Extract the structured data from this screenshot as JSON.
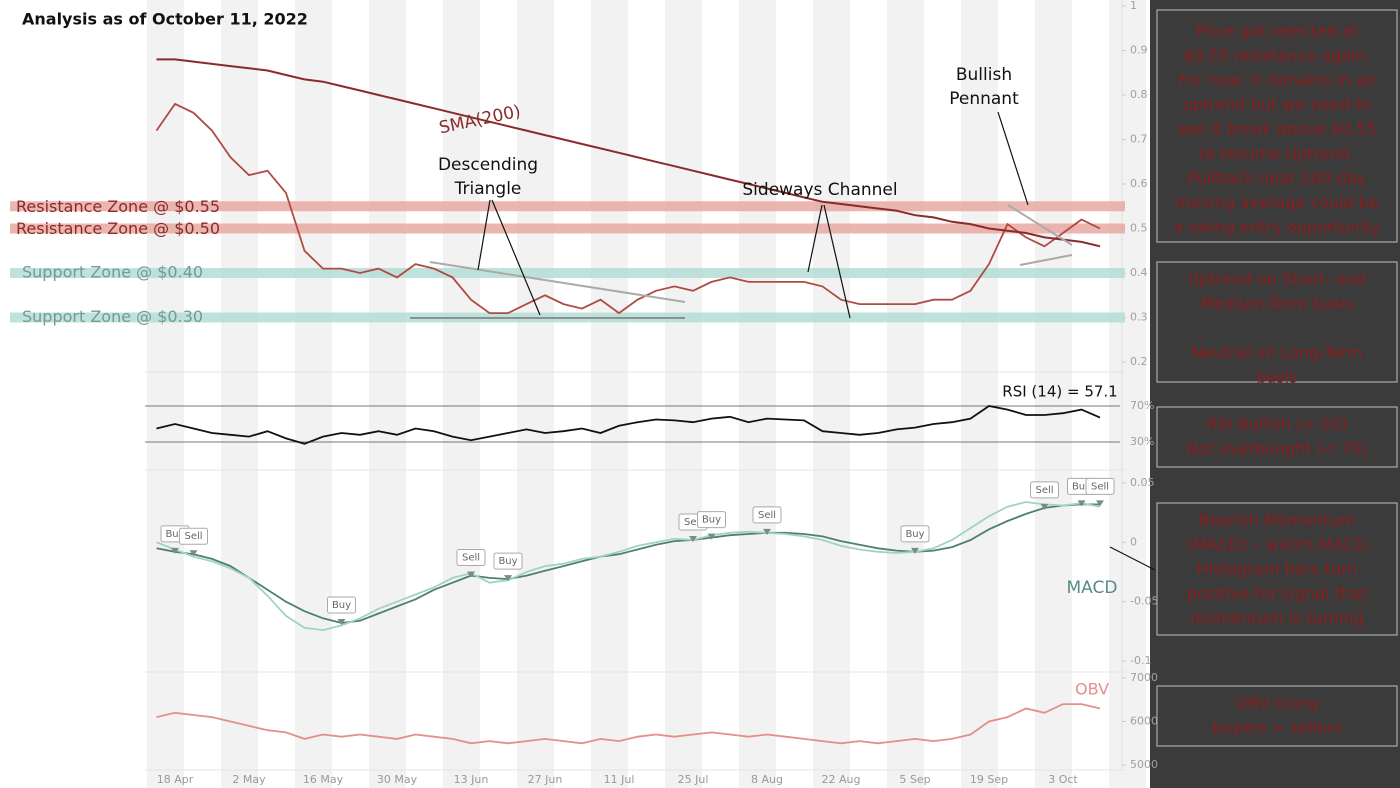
{
  "title": "Analysis as of October 11, 2022",
  "chart_data": [
    {
      "type": "line",
      "ylim": [
        0.2,
        1
      ],
      "yticks": [
        1,
        0.9,
        0.8,
        0.7,
        0.6,
        0.5,
        0.4,
        0.3,
        0.2
      ],
      "series": [
        {
          "color": "#b04a44",
          "values": [
            0.72,
            0.78,
            0.76,
            0.72,
            0.66,
            0.62,
            0.63,
            0.58,
            0.45,
            0.41,
            0.41,
            0.4,
            0.41,
            0.39,
            0.42,
            0.41,
            0.39,
            0.34,
            0.31,
            0.31,
            0.33,
            0.35,
            0.33,
            0.32,
            0.34,
            0.31,
            0.34,
            0.36,
            0.37,
            0.36,
            0.38,
            0.39,
            0.38,
            0.38,
            0.38,
            0.38,
            0.37,
            0.34,
            0.33,
            0.33,
            0.33,
            0.33,
            0.34,
            0.34,
            0.36,
            0.42,
            0.51,
            0.48,
            0.46,
            0.49,
            0.52,
            0.5
          ]
        },
        {
          "color": "#8b2a2a",
          "values": [
            0.88,
            0.88,
            0.875,
            0.87,
            0.865,
            0.86,
            0.855,
            0.845,
            0.835,
            0.83,
            0.82,
            0.81,
            0.8,
            0.79,
            0.78,
            0.77,
            0.76,
            0.75,
            0.74,
            0.73,
            0.72,
            0.71,
            0.7,
            0.69,
            0.68,
            0.67,
            0.66,
            0.65,
            0.64,
            0.63,
            0.62,
            0.61,
            0.6,
            0.59,
            0.58,
            0.57,
            0.56,
            0.555,
            0.55,
            0.545,
            0.54,
            0.53,
            0.525,
            0.515,
            0.51,
            0.5,
            0.495,
            0.49,
            0.48,
            0.475,
            0.47,
            0.46
          ]
        }
      ],
      "zones": [
        {
          "label": "Resistance Zone @ $0.55",
          "value": 0.55,
          "color": "#e8a9a2",
          "text_color": "#8b2a2a"
        },
        {
          "label": "Resistance Zone @ $0.50",
          "value": 0.5,
          "color": "#e8a9a2",
          "text_color": "#8b2a2a"
        },
        {
          "label": "Support Zone @ $0.40",
          "value": 0.4,
          "color": "#b5ddd6",
          "text_color": "#6f9c97"
        },
        {
          "label": "Support Zone @ $0.30",
          "value": 0.3,
          "color": "#b5ddd6",
          "text_color": "#6f9c97"
        }
      ],
      "annotations": [
        {
          "lines": [
            "SMA(200)"
          ]
        },
        {
          "lines": [
            "Descending",
            "Triangle"
          ]
        },
        {
          "lines": [
            "Sideways Channel"
          ]
        },
        {
          "lines": [
            "Bullish",
            "Pennant"
          ]
        }
      ]
    },
    {
      "type": "line",
      "ylim": [
        30,
        70
      ],
      "yticks": [
        {
          "value": 70,
          "label": "70%"
        },
        {
          "value": 30,
          "label": "30%"
        }
      ],
      "annotation": "RSI (14) = 57.1",
      "series": [
        {
          "color": "#111111",
          "values": [
            45,
            50,
            45,
            40,
            38,
            36,
            42,
            34,
            28,
            36,
            40,
            38,
            42,
            38,
            45,
            42,
            36,
            32,
            36,
            40,
            44,
            40,
            42,
            45,
            40,
            48,
            52,
            55,
            54,
            52,
            56,
            58,
            52,
            56,
            55,
            54,
            42,
            40,
            38,
            40,
            44,
            46,
            50,
            52,
            56,
            70,
            66,
            60,
            60,
            62,
            66,
            57.1
          ]
        }
      ]
    },
    {
      "type": "line",
      "ylim": [
        -0.1,
        0.05
      ],
      "yticks": [
        0.05,
        0,
        -0.05,
        -0.1
      ],
      "annotation": "MACD",
      "series": [
        {
          "color": "#4f7f73",
          "values": [
            -0.005,
            -0.008,
            -0.01,
            -0.014,
            -0.02,
            -0.03,
            -0.04,
            -0.05,
            -0.058,
            -0.064,
            -0.068,
            -0.066,
            -0.06,
            -0.054,
            -0.048,
            -0.04,
            -0.034,
            -0.028,
            -0.03,
            -0.031,
            -0.028,
            -0.024,
            -0.02,
            -0.016,
            -0.012,
            -0.01,
            -0.006,
            -0.002,
            0.001,
            0.002,
            0.004,
            0.006,
            0.007,
            0.008,
            0.008,
            0.007,
            0.005,
            0.001,
            -0.002,
            -0.005,
            -0.007,
            -0.008,
            -0.007,
            -0.004,
            0.002,
            0.011,
            0.018,
            0.024,
            0.029,
            0.031,
            0.032,
            0.032
          ]
        },
        {
          "color": "#9fd3c7",
          "values": [
            0,
            -0.006,
            -0.012,
            -0.016,
            -0.022,
            -0.03,
            -0.045,
            -0.062,
            -0.072,
            -0.074,
            -0.07,
            -0.064,
            -0.056,
            -0.05,
            -0.044,
            -0.038,
            -0.03,
            -0.026,
            -0.034,
            -0.032,
            -0.025,
            -0.02,
            -0.018,
            -0.014,
            -0.012,
            -0.008,
            -0.003,
            0,
            0.003,
            0.002,
            0.006,
            0.008,
            0.009,
            0.008,
            0.007,
            0.005,
            0.002,
            -0.003,
            -0.006,
            -0.008,
            -0.009,
            -0.008,
            -0.005,
            0.002,
            0.012,
            0.022,
            0.03,
            0.034,
            0.032,
            0.031,
            0.033,
            0.03
          ]
        }
      ],
      "signals": [
        {
          "label": "Buy",
          "x": 1,
          "y": -0.008
        },
        {
          "label": "Sell",
          "x": 2,
          "y": -0.01
        },
        {
          "label": "Buy",
          "x": 10,
          "y": -0.068
        },
        {
          "label": "Sell",
          "x": 17,
          "y": -0.028
        },
        {
          "label": "Buy",
          "x": 19,
          "y": -0.031
        },
        {
          "label": "Sell",
          "x": 29,
          "y": 0.002
        },
        {
          "label": "Buy",
          "x": 30,
          "y": 0.004
        },
        {
          "label": "Sell",
          "x": 33,
          "y": 0.008
        },
        {
          "label": "Buy",
          "x": 41,
          "y": -0.008
        },
        {
          "label": "Sell",
          "x": 48,
          "y": 0.029
        },
        {
          "label": "Buy",
          "x": 50,
          "y": 0.032
        },
        {
          "label": "Sell",
          "x": 51,
          "y": 0.032
        }
      ]
    },
    {
      "type": "line",
      "ylim": [
        5000,
        7000
      ],
      "yticks": [
        7000,
        6000,
        5000
      ],
      "annotation": "OBV",
      "categories": [
        null,
        "18 Apr",
        null,
        null,
        null,
        "2 May",
        null,
        null,
        null,
        "16 May",
        null,
        null,
        null,
        "30 May",
        null,
        null,
        null,
        "13 Jun",
        null,
        null,
        null,
        "27 Jun",
        null,
        null,
        null,
        "11 Jul",
        null,
        null,
        null,
        "25 Jul",
        null,
        null,
        null,
        "8 Aug",
        null,
        null,
        null,
        "22 Aug",
        null,
        null,
        null,
        "5 Sep",
        null,
        null,
        null,
        "19 Sep",
        null,
        null,
        null,
        "3 Oct",
        null,
        null
      ],
      "series": [
        {
          "color": "#e0918a",
          "values": [
            6100,
            6200,
            6150,
            6100,
            6000,
            5900,
            5800,
            5750,
            5600,
            5700,
            5650,
            5700,
            5650,
            5600,
            5700,
            5650,
            5600,
            5500,
            5550,
            5500,
            5550,
            5600,
            5550,
            5500,
            5600,
            5550,
            5650,
            5700,
            5650,
            5700,
            5750,
            5700,
            5650,
            5700,
            5650,
            5600,
            5550,
            5500,
            5550,
            5500,
            5550,
            5600,
            5550,
            5600,
            5700,
            6000,
            6100,
            6300,
            6200,
            6400,
            6400,
            6300
          ]
        }
      ]
    }
  ],
  "notes": [
    [
      "Price got rejected at",
      "$0.55 resistance again.",
      "For now, it remains in an",
      "uptrend but we need to",
      "see it break above $0.55",
      "to resume Uptrend.",
      "Pullback near 200-day",
      "moving average could be",
      "a swing entry opportunity"
    ],
    [
      "Uptrend on Short- and",
      "Medium-Term basis",
      "",
      "Neutral on Long-Term",
      "basis"
    ],
    [
      "RSI Bullish (> 55)",
      "Not overbought (< 70)"
    ],
    [
      "Bearish Momentum",
      "(MACD) – watch MACD",
      "Histogram bars turn",
      "positive for signal that",
      "momentum is turning"
    ],
    [
      "OBV rising",
      "buyers > sellers"
    ]
  ]
}
